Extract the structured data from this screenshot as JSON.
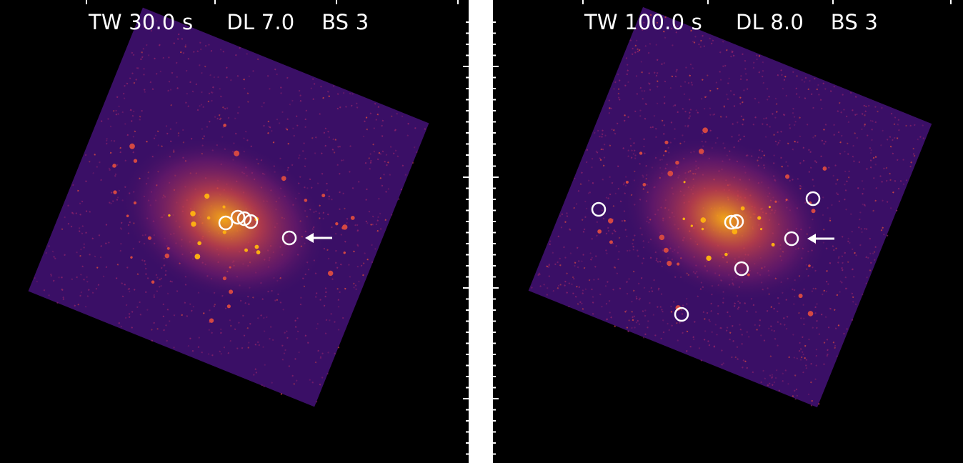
{
  "panels": [
    {
      "id": "left",
      "label": "TW 30.0 s     DL 7.0    BS 3",
      "frame": {
        "center": [
          320,
          290
        ],
        "halfWidth": 216,
        "halfHeight": 214,
        "angle": 22
      },
      "marked_sources": [
        [
          316,
          312
        ],
        [
          333,
          304
        ],
        [
          342,
          306
        ],
        [
          351,
          310
        ],
        [
          405,
          333
        ]
      ],
      "arrow_target": [
        405,
        333
      ]
    },
    {
      "id": "right",
      "label": "TW 100.0 s     DL 8.0    BS 3",
      "frame": {
        "center": [
          332,
          290
        ],
        "halfWidth": 218,
        "halfHeight": 214,
        "angle": 22
      },
      "marked_sources": [
        [
          148,
          293
        ],
        [
          334,
          311
        ],
        [
          341,
          310
        ],
        [
          448,
          278
        ],
        [
          418,
          334
        ],
        [
          348,
          376
        ],
        [
          264,
          440
        ]
      ],
      "arrow_target": [
        418,
        334
      ]
    }
  ],
  "colors": {
    "background": "#000000",
    "frame_fill": "#3a0f66",
    "core": "#fcae12",
    "mid": "#d44842",
    "outer": "#8a226a",
    "marker": "#ffffff"
  }
}
